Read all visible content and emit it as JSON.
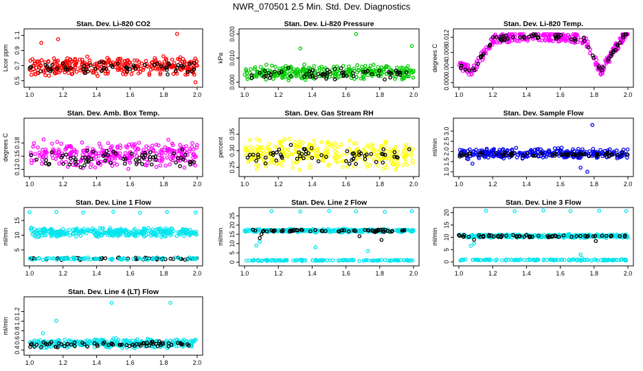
{
  "title": "NWR_070501  2.5 Min. Std. Dev. Diagnostics",
  "chart_data": [
    {
      "type": "scatter",
      "title": "Stan. Dev. Li-820 CO2",
      "ylabel": "Licor ppm",
      "xlim": [
        1.0,
        2.0
      ],
      "ylim": [
        0.45,
        1.15
      ],
      "xticks": [
        "1.0",
        "1.2",
        "1.4",
        "1.6",
        "1.8",
        "2.0"
      ],
      "yticks": [
        "0.5",
        "0.7",
        "0.9",
        "1.1"
      ],
      "ytick_values": [
        0.5,
        0.7,
        0.9,
        1.1
      ],
      "series": [
        {
          "color": "#ff0000",
          "points": [
            [
              1.0,
              0.65
            ],
            [
              1.05,
              0.72
            ],
            [
              1.1,
              0.68
            ],
            [
              1.15,
              0.75
            ],
            [
              1.2,
              0.7
            ],
            [
              1.25,
              0.66
            ],
            [
              1.3,
              0.78
            ],
            [
              1.35,
              0.69
            ],
            [
              1.4,
              0.73
            ],
            [
              1.45,
              0.67
            ],
            [
              1.5,
              0.71
            ],
            [
              1.55,
              0.64
            ],
            [
              1.6,
              0.74
            ],
            [
              1.65,
              0.69
            ],
            [
              1.7,
              0.72
            ],
            [
              1.75,
              0.66
            ],
            [
              1.8,
              0.7
            ],
            [
              1.85,
              0.68
            ],
            [
              1.9,
              0.73
            ],
            [
              1.95,
              0.65
            ],
            [
              2.0,
              0.7
            ]
          ],
          "base": 0.69,
          "spread": 0.14,
          "outliers": [
            [
              1.07,
              1.0
            ],
            [
              1.17,
              1.05
            ],
            [
              1.88,
              1.12
            ],
            [
              1.99,
              0.48
            ]
          ]
        },
        {
          "color": "#000000",
          "base": 0.67,
          "spread": 0.1,
          "count": 60
        }
      ]
    },
    {
      "type": "scatter",
      "title": "Stan. Dev. Li-820 Pressure",
      "ylabel": "kPa",
      "xlim": [
        1.0,
        2.0
      ],
      "ylim": [
        -0.001,
        0.021
      ],
      "xticks": [
        "1.0",
        "1.2",
        "1.4",
        "1.6",
        "1.8",
        "2.0"
      ],
      "yticks": [
        "0.000",
        "0.010",
        "0.020"
      ],
      "ytick_values": [
        0.0,
        0.01,
        0.02
      ],
      "series": [
        {
          "color": "#00cc00",
          "base": 0.004,
          "spread": 0.0035,
          "outliers": [
            [
              1.33,
              0.014
            ],
            [
              1.66,
              0.02
            ],
            [
              1.99,
              0.015
            ]
          ]
        },
        {
          "color": "#000000",
          "base": 0.0035,
          "spread": 0.003,
          "count": 60
        }
      ]
    },
    {
      "type": "scatter",
      "title": "Stan. Dev. Li-820 Temp.",
      "ylabel": "degrees C",
      "xlim": [
        1.0,
        2.0
      ],
      "ylim": [
        -0.0005,
        0.0135
      ],
      "xticks": [
        "1.0",
        "1.2",
        "1.4",
        "1.6",
        "1.8",
        "2.0"
      ],
      "yticks": [
        "0.000",
        "0.004",
        "0.008",
        "0.012"
      ],
      "ytick_values": [
        0.0,
        0.004,
        0.008,
        0.012
      ],
      "series": [
        {
          "color": "#ff00ff",
          "shape": "temp"
        },
        {
          "color": "#000000",
          "shape": "temp-black"
        }
      ]
    },
    {
      "type": "scatter",
      "title": "Stan. Dev. Amb. Box Temp.",
      "ylabel": "degrees C",
      "xlim": [
        1.0,
        2.0
      ],
      "ylim": [
        0.11,
        0.23
      ],
      "xticks": [
        "1.0",
        "1.2",
        "1.4",
        "1.6",
        "1.8",
        "2.0"
      ],
      "yticks": [
        "0.12",
        "0.15",
        "0.18"
      ],
      "ytick_values": [
        0.12,
        0.15,
        0.18
      ],
      "series": [
        {
          "color": "#ff00ff",
          "base": 0.155,
          "spread": 0.035
        },
        {
          "color": "#000000",
          "base": 0.145,
          "spread": 0.022,
          "count": 70
        }
      ]
    },
    {
      "type": "scatter",
      "title": "Stan. Dev. Gas Stream RH",
      "ylabel": "percent",
      "xlim": [
        1.0,
        2.0
      ],
      "ylim": [
        0.23,
        0.39
      ],
      "xticks": [
        "1.0",
        "1.2",
        "1.4",
        "1.6",
        "1.8",
        "2.0"
      ],
      "yticks": [
        "0.25",
        "0.30",
        "0.35"
      ],
      "ytick_values": [
        0.25,
        0.3,
        0.35
      ],
      "series": [
        {
          "color": "#ffff00",
          "base": 0.29,
          "spread": 0.05
        },
        {
          "color": "#000000",
          "base": 0.285,
          "spread": 0.035,
          "count": 60
        }
      ]
    },
    {
      "type": "scatter",
      "title": "Stan. Dev. Sample Flow",
      "ylabel": "ml/min",
      "xlim": [
        1.0,
        2.0
      ],
      "ylim": [
        0.9,
        3.5
      ],
      "xticks": [
        "1.0",
        "1.2",
        "1.4",
        "1.6",
        "1.8",
        "2.0"
      ],
      "yticks": [
        "1.0",
        "1.5",
        "2.0",
        "2.5",
        "3.0"
      ],
      "ytick_values": [
        1.0,
        1.5,
        2.0,
        2.5,
        3.0
      ],
      "series": [
        {
          "color": "#0000ee",
          "base": 1.9,
          "spread": 0.3,
          "outliers": [
            [
              1.08,
              1.4
            ],
            [
              1.72,
              1.2
            ],
            [
              1.76,
              1.0
            ],
            [
              1.79,
              3.3
            ]
          ]
        },
        {
          "color": "#000000",
          "base": 1.85,
          "spread": 0.12,
          "count": 60
        }
      ]
    },
    {
      "type": "scatter",
      "title": "Stan. Dev. Line 1 Flow",
      "ylabel": "ml/min",
      "xlim": [
        1.0,
        2.0
      ],
      "ylim": [
        0.5,
        18.5
      ],
      "xticks": [
        "1.0",
        "1.2",
        "1.4",
        "1.6",
        "1.8",
        "2.0"
      ],
      "yticks": [
        "5",
        "10",
        "15"
      ],
      "ytick_values": [
        5,
        10,
        15
      ],
      "series": [
        {
          "color": "#00e5ee",
          "base": 11.0,
          "spread": 1.8,
          "outliers": [
            [
              1.0,
              17.8
            ],
            [
              1.16,
              17.9
            ],
            [
              1.32,
              17.7
            ],
            [
              1.5,
              18.0
            ],
            [
              1.66,
              17.6
            ],
            [
              1.82,
              17.9
            ],
            [
              1.99,
              17.7
            ]
          ]
        },
        {
          "color": "#000000",
          "base": 2.0,
          "spread": 0.5,
          "count": 60
        },
        {
          "color": "#00e5ee",
          "base": 2.0,
          "spread": 0.5,
          "count": 80
        }
      ]
    },
    {
      "type": "scatter",
      "title": "Stan. Dev. Line 2 Flow",
      "ylabel": "ml/min",
      "xlim": [
        1.0,
        2.0
      ],
      "ylim": [
        -0.5,
        28
      ],
      "xticks": [
        "1.0",
        "1.2",
        "1.4",
        "1.6",
        "1.8",
        "2.0"
      ],
      "yticks": [
        "0",
        "5",
        "10",
        "15",
        "20",
        "25"
      ],
      "ytick_values": [
        0,
        5,
        10,
        15,
        20,
        25
      ],
      "series": [
        {
          "color": "#00e5ee",
          "base": 17.0,
          "spread": 1.0,
          "outliers": [
            [
              1.16,
              27.5
            ],
            [
              1.33,
              27.3
            ],
            [
              1.5,
              27.6
            ],
            [
              1.66,
              27.4
            ],
            [
              1.83,
              27.2
            ],
            [
              1.99,
              27.5
            ],
            [
              1.07,
              9.0
            ],
            [
              1.09,
              11.0
            ],
            [
              1.73,
              6.0
            ],
            [
              1.42,
              8.0
            ]
          ]
        },
        {
          "color": "#000000",
          "base": 17.0,
          "spread": 0.8,
          "count": 60,
          "outliers": [
            [
              1.09,
              13.0
            ],
            [
              1.1,
              15.0
            ],
            [
              1.68,
              14.0
            ],
            [
              1.81,
              12.0
            ]
          ]
        },
        {
          "color": "#00e5ee",
          "base": 1.0,
          "spread": 0.4,
          "count": 120
        }
      ]
    },
    {
      "type": "scatter",
      "title": "Stan. Dev. Line 3 Flow",
      "ylabel": "ml/min",
      "xlim": [
        1.0,
        2.0
      ],
      "ylim": [
        -0.5,
        21
      ],
      "xticks": [
        "1.0",
        "1.2",
        "1.4",
        "1.6",
        "1.8",
        "2.0"
      ],
      "yticks": [
        "0",
        "5",
        "10",
        "15",
        "20"
      ],
      "ytick_values": [
        0,
        5,
        10,
        15,
        20
      ],
      "series": [
        {
          "color": "#00e5ee",
          "base": 10.5,
          "spread": 0.8,
          "outliers": [
            [
              1.16,
              20.8
            ],
            [
              1.33,
              20.6
            ],
            [
              1.5,
              20.9
            ],
            [
              1.66,
              20.7
            ],
            [
              1.83,
              20.8
            ],
            [
              1.99,
              20.7
            ],
            [
              1.07,
              6.5
            ],
            [
              1.09,
              7.5
            ],
            [
              1.72,
              3.0
            ],
            [
              1.73,
              1.5
            ]
          ]
        },
        {
          "color": "#000000",
          "base": 10.5,
          "spread": 0.6,
          "count": 60,
          "outliers": [
            [
              1.09,
              9.0
            ],
            [
              1.81,
              8.5
            ]
          ]
        },
        {
          "color": "#00e5ee",
          "base": 0.8,
          "spread": 0.3,
          "count": 120
        }
      ]
    },
    {
      "type": "scatter",
      "title": "Stan. Dev. Line 4 (LT) Flow",
      "ylabel": "ml/min",
      "xlim": [
        1.0,
        2.0
      ],
      "ylim": [
        0.35,
        1.45
      ],
      "xticks": [
        "1.0",
        "1.2",
        "1.4",
        "1.6",
        "1.8",
        "2.0"
      ],
      "yticks": [
        "0.4",
        "0.6",
        "0.8",
        "1.0",
        "1.2"
      ],
      "ytick_values": [
        0.4,
        0.6,
        0.8,
        1.0,
        1.2
      ],
      "series": [
        {
          "color": "#00e5ee",
          "base": 0.54,
          "spread": 0.11,
          "outliers": [
            [
              1.16,
              1.01
            ],
            [
              1.49,
              1.38
            ],
            [
              1.84,
              1.38
            ],
            [
              1.08,
              0.75
            ]
          ]
        },
        {
          "color": "#000000",
          "base": 0.52,
          "spread": 0.07,
          "count": 70
        }
      ]
    }
  ]
}
